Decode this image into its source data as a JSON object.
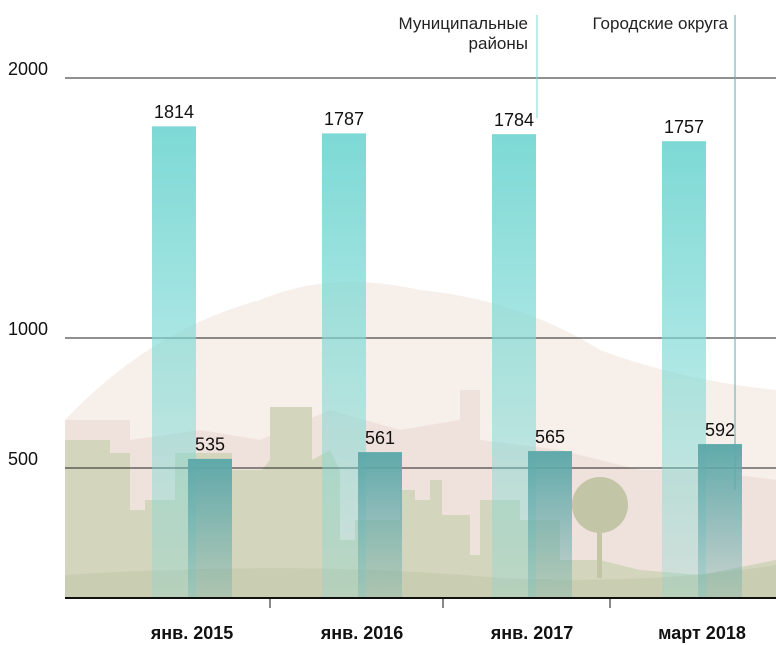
{
  "chart_data": {
    "type": "bar",
    "categories": [
      "янв. 2015",
      "янв. 2016",
      "янв. 2017",
      "март 2018"
    ],
    "series": [
      {
        "name": "Муниципальные районы",
        "color": "#7dd9d5",
        "values": [
          1814,
          1787,
          1784,
          1757
        ]
      },
      {
        "name": "Городские округа",
        "color": "#5fa9aa",
        "values": [
          535,
          561,
          565,
          592
        ]
      }
    ],
    "ylim": [
      0,
      2000
    ],
    "yticks": [
      500,
      1000,
      2000
    ],
    "grid": true
  }
}
